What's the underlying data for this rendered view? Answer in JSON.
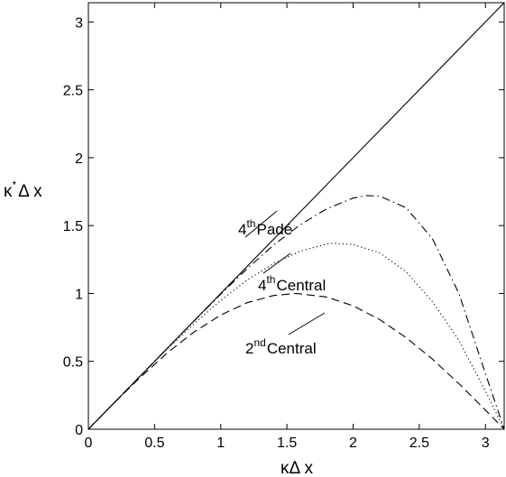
{
  "chart_data": {
    "type": "line",
    "title": "",
    "xlabel": "κΔ x",
    "ylabel": "κ*Δ x",
    "ylabel_base": "κ",
    "ylabel_sup": "*",
    "ylabel_rest": "Δ x",
    "xlim": [
      0,
      3.14159
    ],
    "ylim": [
      0,
      3.14159
    ],
    "grid": false,
    "legend": "none",
    "xticks": [
      "0",
      "0.5",
      "1",
      "1.5",
      "2",
      "2.5",
      "3"
    ],
    "yticks": [
      "0",
      "0.5",
      "1",
      "1.5",
      "2",
      "2.5",
      "3"
    ],
    "series": [
      {
        "key": "exact",
        "style": "solid",
        "x": [
          0,
          3.14159
        ],
        "y": [
          0,
          3.14159
        ]
      },
      {
        "key": "second_central",
        "style": "dashed",
        "x": [
          0,
          0.2,
          0.4,
          0.6,
          0.8,
          1.0,
          1.2,
          1.4,
          1.5708,
          1.8,
          2.0,
          2.2,
          2.4,
          2.6,
          2.8,
          3.0,
          3.14159
        ],
        "y": [
          0,
          0.199,
          0.389,
          0.565,
          0.717,
          0.841,
          0.932,
          0.985,
          1.0,
          0.974,
          0.909,
          0.808,
          0.675,
          0.516,
          0.335,
          0.141,
          0
        ]
      },
      {
        "key": "fourth_central",
        "style": "dotted",
        "x": [
          0,
          0.2,
          0.4,
          0.6,
          0.8,
          1.0,
          1.2,
          1.4,
          1.6,
          1.8,
          1.85,
          2.0,
          2.2,
          2.4,
          2.6,
          2.8,
          3.0,
          3.14159
        ],
        "y": [
          0,
          0.2,
          0.4,
          0.594,
          0.779,
          0.949,
          1.099,
          1.221,
          1.311,
          1.364,
          1.37,
          1.36,
          1.3,
          1.16,
          0.939,
          0.653,
          0.281,
          0
        ]
      },
      {
        "key": "fourth_pade",
        "style": "dashdot",
        "x": [
          0,
          0.2,
          0.4,
          0.6,
          0.8,
          1.0,
          1.2,
          1.4,
          1.6,
          1.8,
          2.0,
          2.1,
          2.2,
          2.4,
          2.6,
          2.8,
          3.0,
          3.14159
        ],
        "y": [
          0,
          0.2,
          0.4,
          0.6,
          0.799,
          0.995,
          1.183,
          1.356,
          1.506,
          1.623,
          1.702,
          1.721,
          1.717,
          1.631,
          1.403,
          0.998,
          0.41,
          0
        ]
      }
    ],
    "annotations": [
      {
        "sup": "th",
        "base": "4",
        "text": "Padé"
      },
      {
        "sup": "th",
        "base": "4",
        "text": "Central"
      },
      {
        "sup": "nd",
        "base": "2",
        "text": "Central"
      }
    ]
  }
}
